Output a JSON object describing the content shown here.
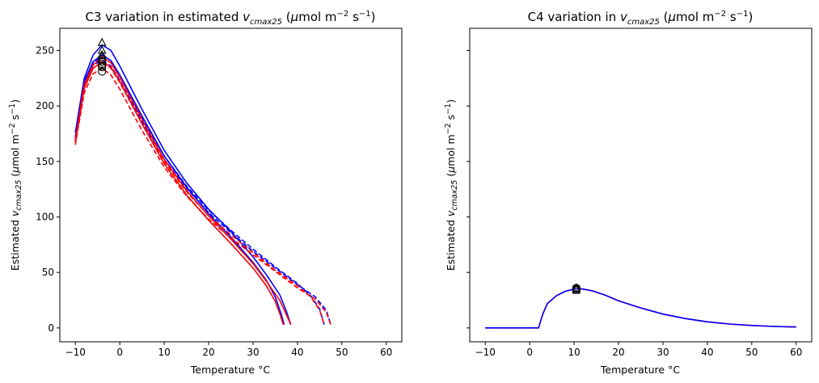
{
  "chart_data": [
    {
      "type": "line",
      "title": "C3 variation in estimated v_cmax25 (μmol m⁻² s⁻¹)",
      "xlabel": "Temperature °C",
      "ylabel": "Estimated v_cmax25 (μmol m⁻² s⁻¹)",
      "xlim": [
        -13.5,
        63.5
      ],
      "ylim": [
        -12.5,
        270
      ],
      "xticks": [
        -10,
        0,
        10,
        20,
        30,
        40,
        50,
        60
      ],
      "yticks": [
        0,
        50,
        100,
        150,
        200,
        250
      ],
      "grid": false,
      "series": [
        {
          "color": "#0000ff",
          "dash": "solid",
          "values": [
            [
              -10,
              176
            ],
            [
              -8,
              225
            ],
            [
              -6,
              246
            ],
            [
              -4,
              255
            ],
            [
              -2,
              250
            ],
            [
              0,
              236
            ],
            [
              5,
              197
            ],
            [
              10,
              160
            ],
            [
              15,
              131
            ],
            [
              20,
              107
            ],
            [
              25,
              87
            ],
            [
              30,
              64
            ],
            [
              33,
              48
            ],
            [
              36,
              30
            ],
            [
              37.5,
              15
            ],
            [
              38.5,
              3
            ]
          ]
        },
        {
          "color": "#0000ff",
          "dash": "solid",
          "values": [
            [
              -10,
              172
            ],
            [
              -8,
              222
            ],
            [
              -6,
              240
            ],
            [
              -4,
              246
            ],
            [
              -2,
              241
            ],
            [
              0,
              228
            ],
            [
              5,
              191
            ],
            [
              10,
              155
            ],
            [
              15,
              127
            ],
            [
              20,
              103
            ],
            [
              25,
              82
            ],
            [
              30,
              59
            ],
            [
              33,
              43
            ],
            [
              35,
              28
            ],
            [
              36.3,
              13
            ],
            [
              37,
              3
            ]
          ]
        },
        {
          "color": "#0000ff",
          "dash": "dashed",
          "values": [
            [
              -10,
              172
            ],
            [
              -8,
              221
            ],
            [
              -6,
              239
            ],
            [
              -4,
              244
            ],
            [
              -2,
              239
            ],
            [
              0,
              226
            ],
            [
              5,
              189
            ],
            [
              10,
              155
            ],
            [
              15,
              128
            ],
            [
              20,
              106
            ],
            [
              25,
              88
            ],
            [
              30,
              71
            ],
            [
              35,
              55
            ],
            [
              40,
              40
            ],
            [
              43,
              29
            ],
            [
              45,
              17
            ],
            [
              46,
              3
            ]
          ]
        },
        {
          "color": "#0000ff",
          "dash": "dashed",
          "values": [
            [
              -10,
              170
            ],
            [
              -8,
              219
            ],
            [
              -6,
              237
            ],
            [
              -4,
              241
            ],
            [
              -2,
              236
            ],
            [
              0,
              223
            ],
            [
              5,
              186
            ],
            [
              10,
              152
            ],
            [
              15,
              126
            ],
            [
              20,
              104
            ],
            [
              25,
              86
            ],
            [
              30,
              69
            ],
            [
              35,
              54
            ],
            [
              40,
              39
            ],
            [
              44,
              28
            ],
            [
              46.5,
              16
            ],
            [
              47.5,
              3
            ]
          ]
        },
        {
          "color": "#ff0000",
          "dash": "solid",
          "values": [
            [
              -10,
              169
            ],
            [
              -8,
              219
            ],
            [
              -6,
              237
            ],
            [
              -4,
              244
            ],
            [
              -2,
              239
            ],
            [
              0,
              226
            ],
            [
              5,
              188
            ],
            [
              10,
              152
            ],
            [
              15,
              124
            ],
            [
              20,
              101
            ],
            [
              25,
              80
            ],
            [
              30,
              58
            ],
            [
              33,
              42
            ],
            [
              36,
              25
            ],
            [
              37.5,
              12
            ],
            [
              38.5,
              3
            ]
          ]
        },
        {
          "color": "#ff0000",
          "dash": "solid",
          "values": [
            [
              -10,
              167
            ],
            [
              -8,
              216
            ],
            [
              -6,
              234
            ],
            [
              -4,
              240
            ],
            [
              -2,
              235
            ],
            [
              0,
              222
            ],
            [
              5,
              184
            ],
            [
              10,
              148
            ],
            [
              15,
              120
            ],
            [
              20,
              97
            ],
            [
              25,
              76
            ],
            [
              30,
              54
            ],
            [
              33,
              38
            ],
            [
              35,
              24
            ],
            [
              36.2,
              11
            ],
            [
              36.8,
              3
            ]
          ]
        },
        {
          "color": "#ff0000",
          "dash": "dashed",
          "values": [
            [
              -10,
              168
            ],
            [
              -8,
              216
            ],
            [
              -6,
              234
            ],
            [
              -4,
              239
            ],
            [
              -2,
              234
            ],
            [
              0,
              221
            ],
            [
              5,
              184
            ],
            [
              10,
              150
            ],
            [
              15,
              123
            ],
            [
              20,
              101
            ],
            [
              25,
              84
            ],
            [
              30,
              68
            ],
            [
              35,
              52
            ],
            [
              40,
              38
            ],
            [
              43,
              28
            ],
            [
              45,
              16
            ],
            [
              46,
              3
            ]
          ]
        },
        {
          "color": "#ff0000",
          "dash": "dashed",
          "values": [
            [
              -10,
              165
            ],
            [
              -8,
              212
            ],
            [
              -6,
              229
            ],
            [
              -4,
              234
            ],
            [
              -2,
              228
            ],
            [
              0,
              215
            ],
            [
              5,
              178
            ],
            [
              10,
              145
            ],
            [
              15,
              119
            ],
            [
              20,
              98
            ],
            [
              25,
              81
            ],
            [
              30,
              66
            ],
            [
              35,
              51
            ],
            [
              40,
              36
            ],
            [
              44,
              26
            ],
            [
              46.5,
              14
            ],
            [
              47.5,
              3
            ]
          ]
        }
      ],
      "markers": [
        {
          "shape": "triangle",
          "values": [
            [
              -4,
              257
            ],
            [
              -4,
              250
            ],
            [
              -4,
              246
            ],
            [
              -4,
              245
            ]
          ]
        },
        {
          "shape": "square",
          "values": [
            [
              -4,
              242
            ],
            [
              -4,
              238
            ],
            [
              -4,
              236
            ]
          ]
        },
        {
          "shape": "circle",
          "values": [
            [
              -4,
              240
            ],
            [
              -4,
              235
            ],
            [
              -4,
              231
            ]
          ]
        }
      ]
    },
    {
      "type": "line",
      "title": "C4 variation in v_cmax25 (μmol m⁻² s⁻¹)",
      "xlabel": "Temperature °C",
      "ylabel": "Estimated v_cmax25 (μmol m⁻² s⁻¹)",
      "xlim": [
        -13.5,
        63.5
      ],
      "ylim": [
        -12.5,
        270
      ],
      "xticks": [
        -10,
        0,
        10,
        20,
        30,
        40,
        50,
        60
      ],
      "yticks": [
        0,
        50,
        100,
        150,
        200,
        250
      ],
      "ytick_labels_shown": false,
      "grid": false,
      "series": [
        {
          "color": "#ff0000",
          "dash": "solid",
          "values": [
            [
              -10,
              0
            ],
            [
              2,
              0
            ],
            [
              3,
              13
            ],
            [
              4,
              22
            ],
            [
              6,
              29
            ],
            [
              8,
              33
            ],
            [
              10,
              35
            ],
            [
              11,
              35.3
            ],
            [
              12,
              35
            ],
            [
              14,
              33.5
            ],
            [
              17,
              29.5
            ],
            [
              20,
              24.5
            ],
            [
              25,
              18
            ],
            [
              30,
              12.5
            ],
            [
              35,
              8.5
            ],
            [
              40,
              5.5
            ],
            [
              45,
              3.5
            ],
            [
              50,
              2.2
            ],
            [
              55,
              1.3
            ],
            [
              60,
              0.8
            ]
          ]
        },
        {
          "color": "#0000ff",
          "dash": "solid",
          "values": [
            [
              -10,
              0
            ],
            [
              2,
              0
            ],
            [
              3,
              13
            ],
            [
              4,
              22
            ],
            [
              6,
              29
            ],
            [
              8,
              33
            ],
            [
              10,
              35
            ],
            [
              11,
              35.3
            ],
            [
              12,
              35
            ],
            [
              14,
              33.5
            ],
            [
              17,
              29.5
            ],
            [
              20,
              24.5
            ],
            [
              25,
              18
            ],
            [
              30,
              12.5
            ],
            [
              35,
              8.5
            ],
            [
              40,
              5.5
            ],
            [
              45,
              3.5
            ],
            [
              50,
              2.2
            ],
            [
              55,
              1.3
            ],
            [
              60,
              0.8
            ]
          ]
        }
      ],
      "markers": [
        {
          "shape": "triangle",
          "values": [
            [
              10.5,
              36
            ],
            [
              10.5,
              35
            ]
          ]
        },
        {
          "shape": "square",
          "values": [
            [
              10.5,
              34
            ],
            [
              10.5,
              35
            ]
          ]
        },
        {
          "shape": "circle",
          "values": [
            [
              10.5,
              36
            ],
            [
              10.5,
              35.5
            ]
          ]
        }
      ]
    }
  ]
}
